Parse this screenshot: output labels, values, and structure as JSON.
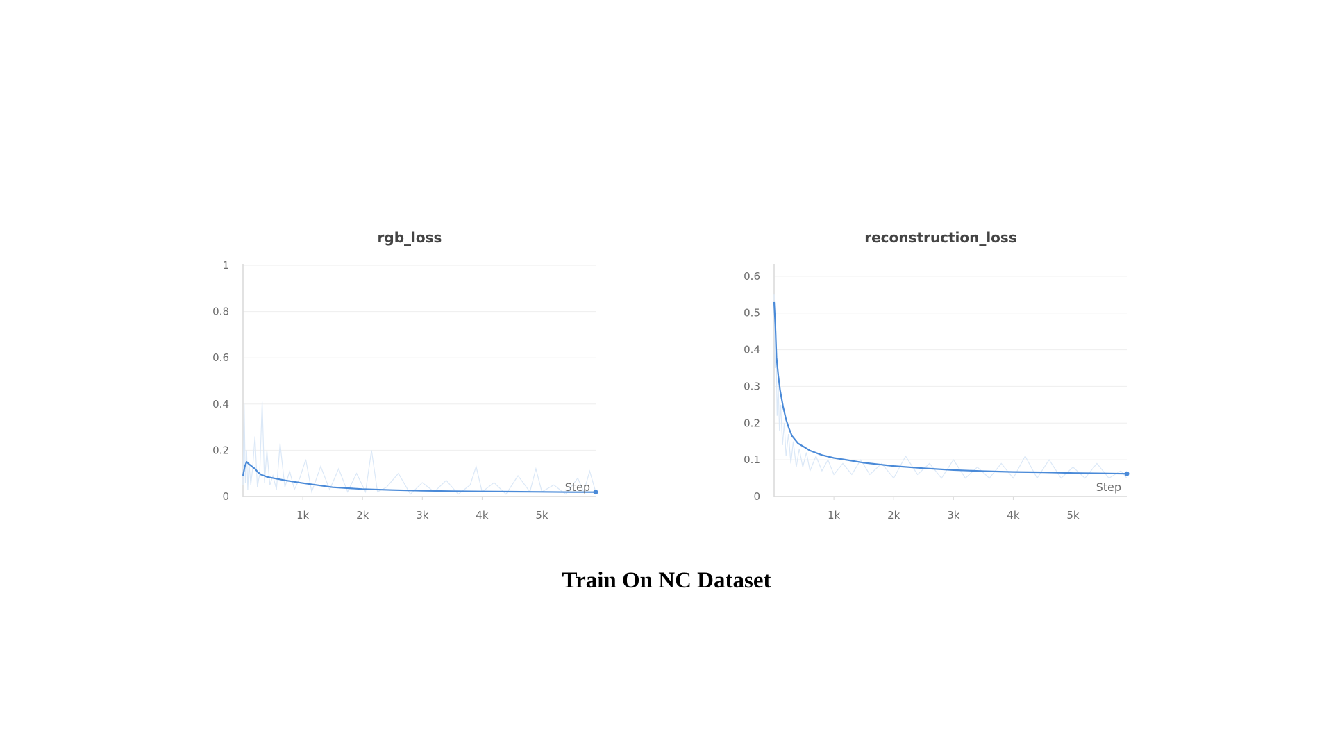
{
  "caption": "Train On NC Dataset",
  "chart_data": [
    {
      "type": "line",
      "title": "rgb_loss",
      "xlabel": "Step",
      "ylabel": "",
      "xlim": [
        0,
        5900
      ],
      "ylim": [
        0,
        1
      ],
      "xticks": [
        {
          "v": 1000,
          "label": "1k"
        },
        {
          "v": 2000,
          "label": "2k"
        },
        {
          "v": 3000,
          "label": "3k"
        },
        {
          "v": 4000,
          "label": "4k"
        },
        {
          "v": 5000,
          "label": "5k"
        }
      ],
      "yticks": [
        {
          "v": 0,
          "label": "0"
        },
        {
          "v": 0.2,
          "label": "0.2"
        },
        {
          "v": 0.4,
          "label": "0.4"
        },
        {
          "v": 0.6,
          "label": "0.6"
        },
        {
          "v": 0.8,
          "label": "0.8"
        },
        {
          "v": 1,
          "label": "1"
        }
      ],
      "grid": true,
      "colors": {
        "smoothed": "#4a8ad8",
        "raw": "#dbe8f7",
        "grid": "#eeeeee",
        "axis": "#d9d9d9"
      },
      "series": [
        {
          "x": [
            0,
            30,
            60,
            100,
            150,
            200,
            250,
            300,
            350,
            400,
            500,
            700,
            1000,
            1500,
            2000,
            2500,
            3000,
            3500,
            4000,
            4500,
            5000,
            5500,
            5900
          ],
          "y": [
            0.09,
            0.13,
            0.15,
            0.14,
            0.13,
            0.12,
            0.105,
            0.095,
            0.09,
            0.085,
            0.08,
            0.07,
            0.058,
            0.04,
            0.032,
            0.028,
            0.025,
            0.023,
            0.022,
            0.021,
            0.02,
            0.019,
            0.019
          ]
        }
      ],
      "raw_series": {
        "x": [
          0,
          20,
          40,
          60,
          80,
          100,
          130,
          160,
          200,
          240,
          280,
          320,
          360,
          400,
          450,
          500,
          560,
          620,
          700,
          780,
          860,
          950,
          1050,
          1150,
          1300,
          1450,
          1600,
          1750,
          1900,
          2050,
          2150,
          2250,
          2400,
          2600,
          2800,
          3000,
          3200,
          3400,
          3600,
          3800,
          3900,
          4000,
          4200,
          4400,
          4600,
          4800,
          4900,
          5000,
          5200,
          5400,
          5600,
          5700,
          5800,
          5900
        ],
        "y": [
          0.05,
          0.4,
          0.06,
          0.2,
          0.03,
          0.15,
          0.05,
          0.12,
          0.26,
          0.04,
          0.1,
          0.41,
          0.06,
          0.2,
          0.05,
          0.09,
          0.03,
          0.23,
          0.04,
          0.11,
          0.03,
          0.08,
          0.16,
          0.02,
          0.13,
          0.03,
          0.12,
          0.02,
          0.1,
          0.02,
          0.2,
          0.02,
          0.04,
          0.1,
          0.01,
          0.06,
          0.02,
          0.07,
          0.01,
          0.05,
          0.13,
          0.02,
          0.06,
          0.01,
          0.09,
          0.02,
          0.12,
          0.02,
          0.05,
          0.01,
          0.08,
          0.02,
          0.11,
          0.02
        ]
      }
    },
    {
      "type": "line",
      "title": "reconstruction_loss",
      "xlabel": "Step",
      "ylabel": "",
      "xlim": [
        0,
        5900
      ],
      "ylim": [
        0,
        0.63
      ],
      "xticks": [
        {
          "v": 1000,
          "label": "1k"
        },
        {
          "v": 2000,
          "label": "2k"
        },
        {
          "v": 3000,
          "label": "3k"
        },
        {
          "v": 4000,
          "label": "4k"
        },
        {
          "v": 5000,
          "label": "5k"
        }
      ],
      "yticks": [
        {
          "v": 0,
          "label": "0"
        },
        {
          "v": 0.1,
          "label": "0.1"
        },
        {
          "v": 0.2,
          "label": "0.2"
        },
        {
          "v": 0.3,
          "label": "0.3"
        },
        {
          "v": 0.4,
          "label": "0.4"
        },
        {
          "v": 0.5,
          "label": "0.5"
        },
        {
          "v": 0.6,
          "label": "0.6"
        }
      ],
      "grid": true,
      "colors": {
        "smoothed": "#4a8ad8",
        "raw": "#dbe8f7",
        "grid": "#eeeeee",
        "axis": "#d9d9d9"
      },
      "series": [
        {
          "x": [
            0,
            20,
            40,
            70,
            100,
            150,
            200,
            250,
            300,
            400,
            500,
            600,
            800,
            1000,
            1200,
            1500,
            2000,
            2500,
            3000,
            3500,
            4000,
            4500,
            5000,
            5500,
            5900
          ],
          "y": [
            0.53,
            0.47,
            0.38,
            0.33,
            0.29,
            0.245,
            0.21,
            0.185,
            0.165,
            0.145,
            0.135,
            0.125,
            0.113,
            0.105,
            0.1,
            0.092,
            0.083,
            0.077,
            0.072,
            0.069,
            0.067,
            0.066,
            0.064,
            0.063,
            0.062
          ]
        }
      ],
      "raw_series": {
        "x": [
          0,
          15,
          30,
          50,
          70,
          90,
          110,
          140,
          170,
          200,
          240,
          280,
          320,
          370,
          420,
          480,
          540,
          600,
          700,
          800,
          900,
          1000,
          1150,
          1300,
          1450,
          1600,
          1800,
          2000,
          2200,
          2400,
          2600,
          2800,
          3000,
          3200,
          3400,
          3600,
          3800,
          4000,
          4200,
          4400,
          4600,
          4800,
          5000,
          5200,
          5400,
          5600,
          5800,
          5900
        ],
        "y": [
          0.55,
          0.35,
          0.45,
          0.22,
          0.3,
          0.18,
          0.25,
          0.14,
          0.2,
          0.11,
          0.17,
          0.09,
          0.15,
          0.08,
          0.13,
          0.08,
          0.12,
          0.07,
          0.11,
          0.07,
          0.1,
          0.06,
          0.09,
          0.06,
          0.1,
          0.06,
          0.09,
          0.05,
          0.11,
          0.06,
          0.09,
          0.05,
          0.1,
          0.05,
          0.08,
          0.05,
          0.09,
          0.05,
          0.11,
          0.05,
          0.1,
          0.05,
          0.08,
          0.05,
          0.09,
          0.05,
          0.07,
          0.05
        ]
      }
    }
  ]
}
